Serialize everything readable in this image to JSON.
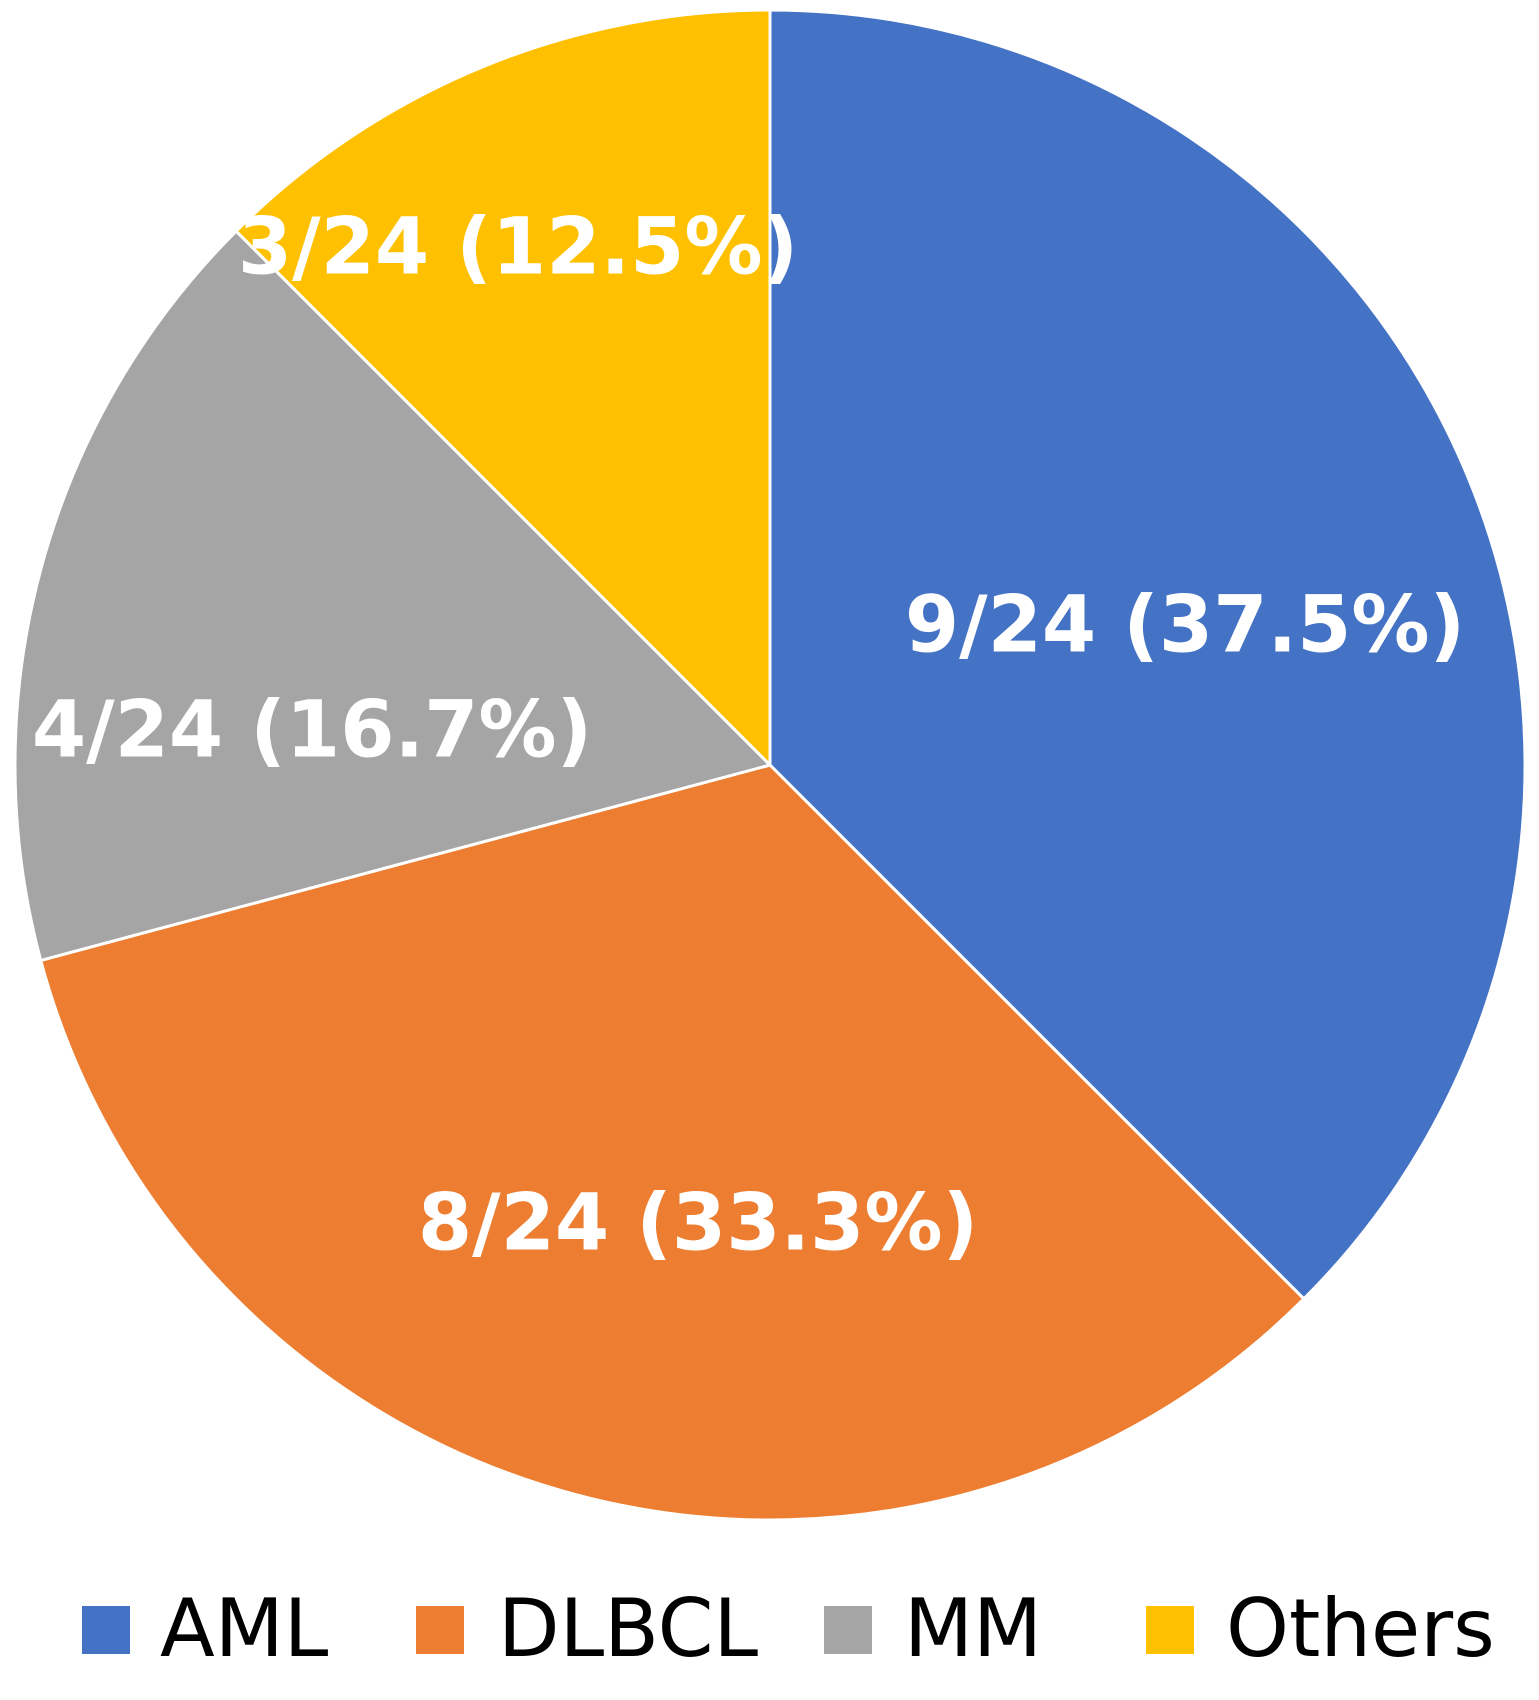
{
  "chart_data": {
    "type": "pie",
    "categories": [
      "AML",
      "DLBCL",
      "MM",
      "Others"
    ],
    "values": [
      9,
      8,
      4,
      3
    ],
    "total": 24,
    "data_labels": [
      "9/24 (37.5%)",
      "8/24 (33.3%)",
      "4/24 (16.7%)",
      "3/24 (12.5%)"
    ],
    "colors": [
      "#4472C4",
      "#ED7D31",
      "#A5A5A5",
      "#FFC000"
    ],
    "legend_position": "bottom",
    "start_angle_deg": 0,
    "direction": "clockwise"
  }
}
